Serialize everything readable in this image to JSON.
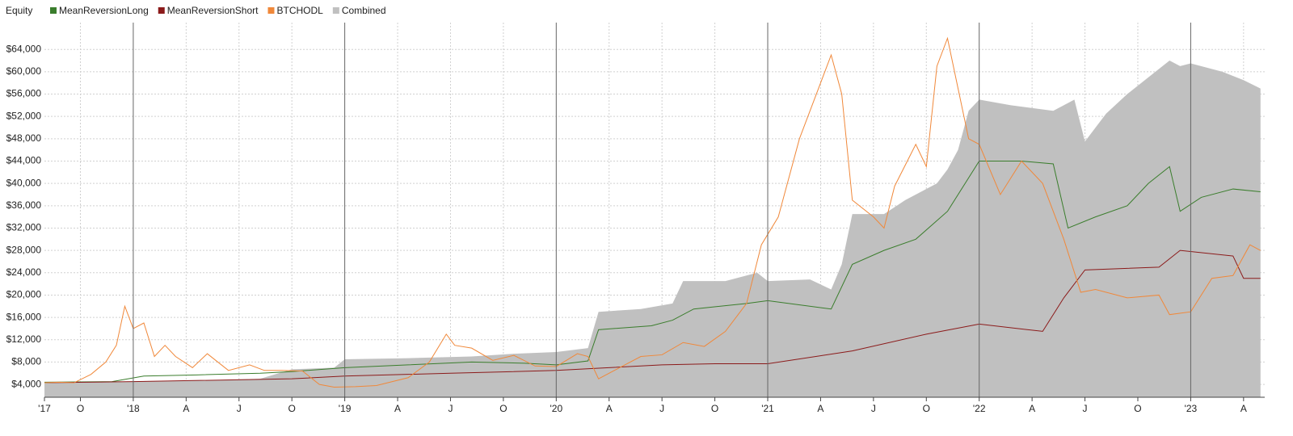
{
  "chart_data": {
    "type": "line",
    "title": "Equity",
    "xlim": [
      2017.58,
      2023.35
    ],
    "xticks": [
      {
        "value": 2017.58,
        "label": "'17"
      },
      {
        "value": 2017.75,
        "label": "O"
      },
      {
        "value": 2018,
        "label": "'18"
      },
      {
        "value": 2018.25,
        "label": "A"
      },
      {
        "value": 2018.5,
        "label": "J"
      },
      {
        "value": 2018.75,
        "label": "O"
      },
      {
        "value": 2019,
        "label": "'19"
      },
      {
        "value": 2019.25,
        "label": "A"
      },
      {
        "value": 2019.5,
        "label": "J"
      },
      {
        "value": 2019.75,
        "label": "O"
      },
      {
        "value": 2020,
        "label": "'20"
      },
      {
        "value": 2020.25,
        "label": "A"
      },
      {
        "value": 2020.5,
        "label": "J"
      },
      {
        "value": 2020.75,
        "label": "O"
      },
      {
        "value": 2021,
        "label": "'21"
      },
      {
        "value": 2021.25,
        "label": "A"
      },
      {
        "value": 2021.5,
        "label": "J"
      },
      {
        "value": 2021.75,
        "label": "O"
      },
      {
        "value": 2022,
        "label": "'22"
      },
      {
        "value": 2022.25,
        "label": "A"
      },
      {
        "value": 2022.5,
        "label": "J"
      },
      {
        "value": 2022.75,
        "label": "O"
      },
      {
        "value": 2023,
        "label": "'23"
      },
      {
        "value": 2023.25,
        "label": "A"
      }
    ],
    "ylim": [
      1700,
      68800
    ],
    "yticks": [
      {
        "value": 4000,
        "label": "$4,000"
      },
      {
        "value": 8000,
        "label": "$8,000"
      },
      {
        "value": 12000,
        "label": "$12,000"
      },
      {
        "value": 16000,
        "label": "$16,000"
      },
      {
        "value": 20000,
        "label": "$20,000"
      },
      {
        "value": 24000,
        "label": "$24,000"
      },
      {
        "value": 28000,
        "label": "$28,000"
      },
      {
        "value": 32000,
        "label": "$32,000"
      },
      {
        "value": 36000,
        "label": "$36,000"
      },
      {
        "value": 40000,
        "label": "$40,000"
      },
      {
        "value": 44000,
        "label": "$44,000"
      },
      {
        "value": 48000,
        "label": "$48,000"
      },
      {
        "value": 52000,
        "label": "$52,000"
      },
      {
        "value": 56000,
        "label": "$56,000"
      },
      {
        "value": 60000,
        "label": "$60,000"
      },
      {
        "value": 64000,
        "label": "$64,000"
      }
    ],
    "grid": true,
    "series": [
      {
        "name": "Combined",
        "color": "#c0c0c0",
        "style": "area",
        "x": [
          2017.58,
          2017.9,
          2018.05,
          2018.3,
          2018.6,
          2018.75,
          2018.95,
          2019.0,
          2019.3,
          2019.6,
          2019.8,
          2020.0,
          2020.15,
          2020.2,
          2020.4,
          2020.55,
          2020.6,
          2020.8,
          2020.95,
          2021.0,
          2021.2,
          2021.3,
          2021.35,
          2021.4,
          2021.55,
          2021.65,
          2021.8,
          2021.85,
          2021.9,
          2021.95,
          2022.0,
          2022.15,
          2022.35,
          2022.45,
          2022.5,
          2022.6,
          2022.7,
          2022.8,
          2022.9,
          2022.95,
          2023.0,
          2023.15,
          2023.25,
          2023.33
        ],
        "values": [
          4400,
          4400,
          4600,
          4700,
          5000,
          6700,
          7000,
          8500,
          8700,
          9000,
          9500,
          9800,
          10500,
          17000,
          17500,
          18500,
          22500,
          22500,
          24000,
          22500,
          22800,
          21000,
          25500,
          34500,
          34500,
          37000,
          40000,
          42500,
          46000,
          53000,
          55000,
          54000,
          53000,
          55000,
          47500,
          52500,
          56000,
          59000,
          62000,
          61000,
          61500,
          60000,
          58500,
          57000
        ]
      },
      {
        "name": "MeanReversionLong",
        "color": "#3a7d2c",
        "style": "line",
        "x": [
          2017.58,
          2017.9,
          2018.05,
          2018.3,
          2018.6,
          2018.75,
          2019.0,
          2019.3,
          2019.6,
          2019.85,
          2020.0,
          2020.15,
          2020.2,
          2020.45,
          2020.55,
          2020.65,
          2020.9,
          2021.0,
          2021.3,
          2021.4,
          2021.55,
          2021.7,
          2021.85,
          2021.95,
          2022.0,
          2022.2,
          2022.35,
          2022.42,
          2022.55,
          2022.7,
          2022.8,
          2022.9,
          2022.95,
          2023.05,
          2023.2,
          2023.33
        ],
        "values": [
          4400,
          4500,
          5500,
          5700,
          6000,
          6300,
          7000,
          7500,
          8000,
          7800,
          7500,
          8200,
          13800,
          14500,
          15500,
          17500,
          18500,
          19000,
          17500,
          25500,
          28000,
          30000,
          35000,
          41000,
          44000,
          44000,
          43500,
          32000,
          34000,
          36000,
          40000,
          43000,
          35000,
          37500,
          39000,
          38500
        ]
      },
      {
        "name": "MeanReversionShort",
        "color": "#8b1a1a",
        "style": "line",
        "x": [
          2017.58,
          2018.0,
          2018.75,
          2019.0,
          2019.5,
          2020.0,
          2020.5,
          2020.75,
          2021.0,
          2021.4,
          2021.75,
          2022.0,
          2022.3,
          2022.4,
          2022.5,
          2022.85,
          2022.95,
          2023.2,
          2023.25,
          2023.33
        ],
        "values": [
          4300,
          4500,
          5000,
          5500,
          6000,
          6500,
          7500,
          7700,
          7700,
          10000,
          13000,
          14800,
          13500,
          19500,
          24500,
          25000,
          28000,
          27000,
          23000,
          23000
        ]
      },
      {
        "name": "BTCHODL",
        "color": "#f0883a",
        "style": "line",
        "x": [
          2017.58,
          2017.65,
          2017.72,
          2017.8,
          2017.87,
          2017.92,
          2017.96,
          2018.0,
          2018.05,
          2018.1,
          2018.15,
          2018.2,
          2018.28,
          2018.35,
          2018.4,
          2018.45,
          2018.55,
          2018.62,
          2018.7,
          2018.8,
          2018.88,
          2018.95,
          2019.05,
          2019.15,
          2019.3,
          2019.4,
          2019.48,
          2019.52,
          2019.6,
          2019.7,
          2019.8,
          2019.9,
          2020.0,
          2020.1,
          2020.15,
          2020.2,
          2020.3,
          2020.4,
          2020.5,
          2020.6,
          2020.7,
          2020.8,
          2020.9,
          2020.97,
          2021.05,
          2021.15,
          2021.25,
          2021.3,
          2021.35,
          2021.4,
          2021.5,
          2021.55,
          2021.6,
          2021.7,
          2021.75,
          2021.8,
          2021.85,
          2021.9,
          2021.95,
          2022.0,
          2022.1,
          2022.2,
          2022.3,
          2022.4,
          2022.48,
          2022.55,
          2022.7,
          2022.85,
          2022.9,
          2023.0,
          2023.1,
          2023.2,
          2023.28,
          2023.33
        ],
        "values": [
          4300,
          4400,
          4300,
          5800,
          8000,
          11000,
          18000,
          14000,
          15000,
          9000,
          11000,
          9000,
          7000,
          9500,
          8000,
          6500,
          7500,
          6500,
          6500,
          6400,
          4000,
          3500,
          3600,
          3800,
          5200,
          8000,
          13000,
          11000,
          10500,
          8300,
          9200,
          7300,
          7200,
          9500,
          9000,
          5000,
          7000,
          9000,
          9300,
          11500,
          10800,
          13500,
          18500,
          29000,
          34000,
          48000,
          58000,
          63000,
          56000,
          37000,
          34000,
          32000,
          39500,
          47000,
          43000,
          61000,
          66000,
          57000,
          48000,
          47000,
          38000,
          44000,
          40000,
          30000,
          20500,
          21000,
          19500,
          20000,
          16500,
          17000,
          23000,
          23500,
          29000,
          28000
        ]
      }
    ]
  }
}
